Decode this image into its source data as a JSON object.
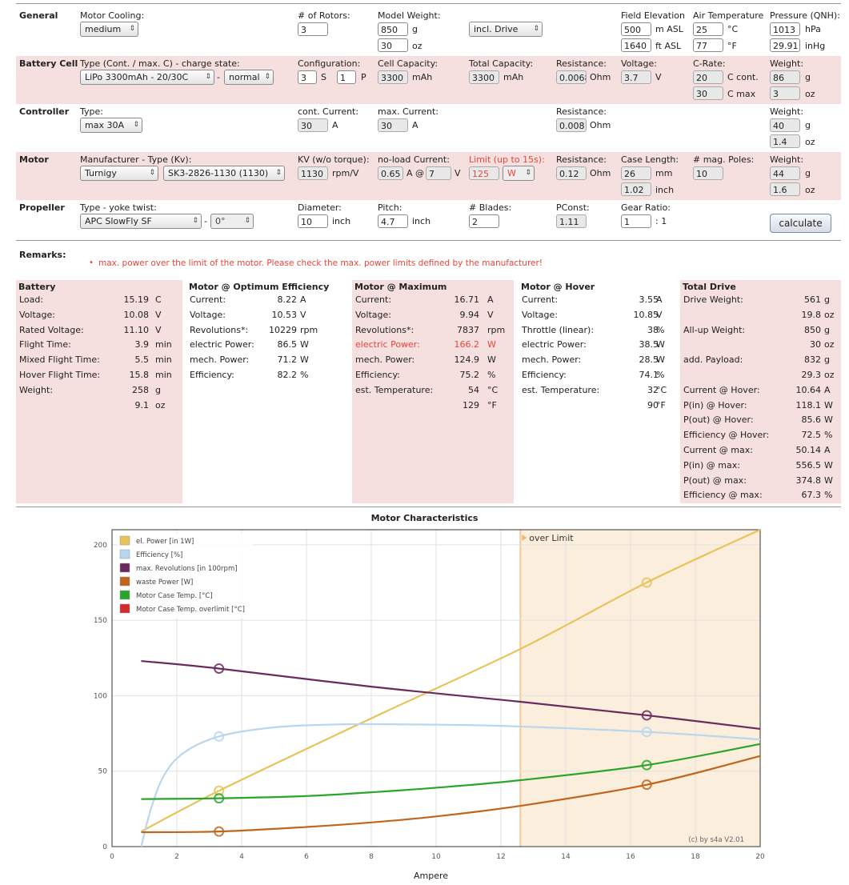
{
  "inputs": {
    "general": {
      "title": "General",
      "motor_cooling_label": "Motor Cooling:",
      "motor_cooling": "medium",
      "rotors_label": "# of Rotors:",
      "rotors": "3",
      "model_weight_label": "Model Weight:",
      "model_weight_g": "850",
      "model_weight_oz": "30",
      "unit_g": "g",
      "unit_oz": "oz",
      "drive_option": "incl. Drive",
      "field_elev_label": "Field Elevation",
      "field_elev_m": "500",
      "field_elev_m_unit": "m ASL",
      "field_elev_ft": "1640",
      "field_elev_ft_unit": "ft ASL",
      "air_temp_label": "Air Temperature",
      "air_temp_c": "25",
      "air_temp_c_unit": "°C",
      "air_temp_f": "77",
      "air_temp_f_unit": "°F",
      "pressure_label": "Pressure (QNH):",
      "pressure_hpa": "1013",
      "pressure_hpa_unit": "hPa",
      "pressure_inhg": "29.91",
      "pressure_inhg_unit": "inHg"
    },
    "battery": {
      "title": "Battery Cell",
      "type_label": "Type (Cont. / max. C) - charge state:",
      "type": "LiPo 3300mAh - 20/30C",
      "charge_state": "normal",
      "dash": "-",
      "config_label": "Configuration:",
      "s": "3",
      "s_unit": "S",
      "p": "1",
      "p_unit": "P",
      "cell_capacity_label": "Cell Capacity:",
      "cell_capacity": "3300",
      "mah": "mAh",
      "total_capacity_label": "Total Capacity:",
      "total_capacity": "3300",
      "resistance_label": "Resistance:",
      "resistance": "0.0068",
      "ohm": "Ohm",
      "voltage_label": "Voltage:",
      "voltage": "3.7",
      "v": "V",
      "crate_label": "C-Rate:",
      "c_cont": "20",
      "c_cont_unit": "C cont.",
      "c_max": "30",
      "c_max_unit": "C max",
      "weight_label": "Weight:",
      "weight_g": "86",
      "weight_oz": "3"
    },
    "controller": {
      "title": "Controller",
      "type_label": "Type:",
      "type": "max 30A",
      "cont_current_label": "cont. Current:",
      "cont_current": "30",
      "a": "A",
      "max_current_label": "max. Current:",
      "max_current": "30",
      "resistance_label": "Resistance:",
      "resistance": "0.008",
      "weight_label": "Weight:",
      "weight_g": "40",
      "weight_oz": "1.4"
    },
    "motor": {
      "title": "Motor",
      "manu_label": "Manufacturer - Type (Kv):",
      "manufacturer": "Turnigy",
      "type": "SK3-2826-1130 (1130)",
      "kv_label": "KV (w/o torque):",
      "kv": "1130",
      "kv_unit": "rpm/V",
      "noload_label": "no-load Current:",
      "noload_current": "0.65",
      "noload_at": "A @",
      "noload_voltage": "7",
      "noload_v": "V",
      "limit_label": "Limit (up to 15s):",
      "limit_value": "125",
      "limit_unit": "W",
      "resistance_label": "Resistance:",
      "resistance": "0.12",
      "case_length_label": "Case Length:",
      "case_length_mm": "26",
      "mm": "mm",
      "case_length_inch": "1.02",
      "inch": "inch",
      "poles_label": "# mag. Poles:",
      "poles": "10",
      "weight_label": "Weight:",
      "weight_g": "44",
      "weight_oz": "1.6"
    },
    "propeller": {
      "title": "Propeller",
      "type_label": "Type - yoke twist:",
      "type": "APC SlowFly SF",
      "dash": "-",
      "twist": "0°",
      "diameter_label": "Diameter:",
      "diameter": "10",
      "inch": "inch",
      "pitch_label": "Pitch:",
      "pitch": "4.7",
      "blades_label": "# Blades:",
      "blades": "2",
      "pconst_label": "PConst:",
      "pconst": "1.11",
      "gear_label": "Gear Ratio:",
      "gear": "1",
      "gear_unit": ": 1",
      "calculate": "calculate"
    }
  },
  "remarks": {
    "title": "Remarks:",
    "message": "max. power over the limit of the motor. Please check the max. power limits defined by the manufacturer!"
  },
  "results": [
    {
      "title": "Battery",
      "rows": [
        {
          "k": "Load:",
          "v": "15.19",
          "u": "C"
        },
        {
          "k": "Voltage:",
          "v": "10.08",
          "u": "V"
        },
        {
          "k": "Rated Voltage:",
          "v": "11.10",
          "u": "V"
        },
        {
          "k": "Flight Time:",
          "v": "3.9",
          "u": "min"
        },
        {
          "k": "Mixed Flight Time:",
          "v": "5.5",
          "u": "min"
        },
        {
          "k": "Hover Flight Time:",
          "v": "15.8",
          "u": "min"
        },
        {
          "k": "Weight:",
          "v": "258",
          "u": "g"
        },
        {
          "k": "",
          "v": "9.1",
          "u": "oz"
        }
      ]
    },
    {
      "title": "Motor @ Optimum Efficiency",
      "rows": [
        {
          "k": "Current:",
          "v": "8.22",
          "u": "A"
        },
        {
          "k": "Voltage:",
          "v": "10.53",
          "u": "V"
        },
        {
          "k": "Revolutions*:",
          "v": "10229",
          "u": "rpm"
        },
        {
          "k": "electric Power:",
          "v": "86.5",
          "u": "W"
        },
        {
          "k": "mech. Power:",
          "v": "71.2",
          "u": "W"
        },
        {
          "k": "Efficiency:",
          "v": "82.2",
          "u": "%"
        }
      ]
    },
    {
      "title": "Motor @ Maximum",
      "rows": [
        {
          "k": "Current:",
          "v": "16.71",
          "u": "A"
        },
        {
          "k": "Voltage:",
          "v": "9.94",
          "u": "V"
        },
        {
          "k": "Revolutions*:",
          "v": "7837",
          "u": "rpm"
        },
        {
          "k": "electric Power:",
          "v": "166.2",
          "u": "W",
          "warn": true
        },
        {
          "k": "mech. Power:",
          "v": "124.9",
          "u": "W"
        },
        {
          "k": "Efficiency:",
          "v": "75.2",
          "u": "%"
        },
        {
          "k": "est. Temperature:",
          "v": "54",
          "u": "°C"
        },
        {
          "k": "",
          "v": "129",
          "u": "°F"
        }
      ]
    },
    {
      "title": "Motor @ Hover",
      "rows": [
        {
          "k": "Current:",
          "v": "3.55",
          "u": "A"
        },
        {
          "k": "Voltage:",
          "v": "10.85",
          "u": "V"
        },
        {
          "k": "Throttle (linear):",
          "v": "38",
          "u": "%"
        },
        {
          "k": "electric Power:",
          "v": "38.5",
          "u": "W"
        },
        {
          "k": "mech. Power:",
          "v": "28.5",
          "u": "W"
        },
        {
          "k": "Efficiency:",
          "v": "74.1",
          "u": "%"
        },
        {
          "k": "est. Temperature:",
          "v": "32",
          "u": "°C"
        },
        {
          "k": "",
          "v": "90",
          "u": "°F"
        }
      ]
    },
    {
      "title": "Total Drive",
      "rows": [
        {
          "k": "Drive Weight:",
          "v": "561",
          "u": "g"
        },
        {
          "k": "",
          "v": "19.8",
          "u": "oz"
        },
        {
          "k": "All-up Weight:",
          "v": "850",
          "u": "g"
        },
        {
          "k": "",
          "v": "30",
          "u": "oz"
        },
        {
          "k": "add. Payload:",
          "v": "832",
          "u": "g"
        },
        {
          "k": "",
          "v": "29.3",
          "u": "oz"
        },
        {
          "k": "Current @ Hover:",
          "v": "10.64",
          "u": "A"
        },
        {
          "k": "P(in) @ Hover:",
          "v": "118.1",
          "u": "W"
        },
        {
          "k": "P(out) @ Hover:",
          "v": "85.6",
          "u": "W"
        },
        {
          "k": "Efficiency @ Hover:",
          "v": "72.5",
          "u": "%"
        },
        {
          "k": "Current @ max:",
          "v": "50.14",
          "u": "A"
        },
        {
          "k": "P(in) @ max:",
          "v": "556.5",
          "u": "W"
        },
        {
          "k": "P(out) @ max:",
          "v": "374.8",
          "u": "W"
        },
        {
          "k": "Efficiency @ max:",
          "v": "67.3",
          "u": "%"
        }
      ]
    }
  ],
  "chart_data": {
    "type": "line",
    "title": "Motor Characteristics",
    "xlabel": "Ampere",
    "ylabel": "",
    "xlim": [
      0,
      20
    ],
    "ylim": [
      0,
      210
    ],
    "xticks": [
      0,
      2,
      4,
      6,
      8,
      10,
      12,
      14,
      16,
      18,
      20
    ],
    "yticks": [
      0,
      50,
      100,
      150,
      200
    ],
    "grid": true,
    "legend_position": "top-left",
    "overlimit_from_x": 12.6,
    "overlimit_label": "over Limit",
    "watermark": "(c) by s4a    V2.01",
    "markers_at_x": [
      3.3,
      16.5
    ],
    "series": [
      {
        "name": "el. Power [in 1W]",
        "color": "#e8c35a",
        "x": [
          0.9,
          3.3,
          8,
          12.6,
          16.5,
          20
        ],
        "y": [
          10,
          37,
          85,
          131,
          175,
          210
        ]
      },
      {
        "name": "Efficiency [%]",
        "color": "#b8d6ee",
        "x": [
          0.9,
          1.2,
          1.6,
          2.2,
          3.3,
          5,
          7,
          9,
          12,
          16.5,
          20
        ],
        "y": [
          0,
          25,
          47,
          62,
          73,
          79,
          81,
          81,
          80,
          76,
          71
        ]
      },
      {
        "name": "max. Revolutions [in 100rpm]",
        "color": "#6b2a5e",
        "x": [
          0.9,
          3.3,
          8,
          12.6,
          16.5,
          20
        ],
        "y": [
          123,
          118,
          106,
          96,
          87,
          78
        ]
      },
      {
        "name": "waste Power [W]",
        "color": "#c0651c",
        "x": [
          0.9,
          3.3,
          6,
          8,
          10,
          12.6,
          16.5,
          20
        ],
        "y": [
          9.5,
          10,
          13,
          16,
          20,
          27,
          41,
          60
        ]
      },
      {
        "name": "Motor Case Temp. [°C]",
        "color": "#2aa52a",
        "x": [
          0.9,
          3.3,
          6,
          8,
          10,
          12.6,
          16.5,
          20
        ],
        "y": [
          31.5,
          32,
          33.5,
          36,
          39,
          44,
          54,
          68
        ]
      },
      {
        "name": "Motor Case Temp. overlimit [°C]",
        "color": "#d12b2b",
        "x": [],
        "y": []
      }
    ]
  }
}
